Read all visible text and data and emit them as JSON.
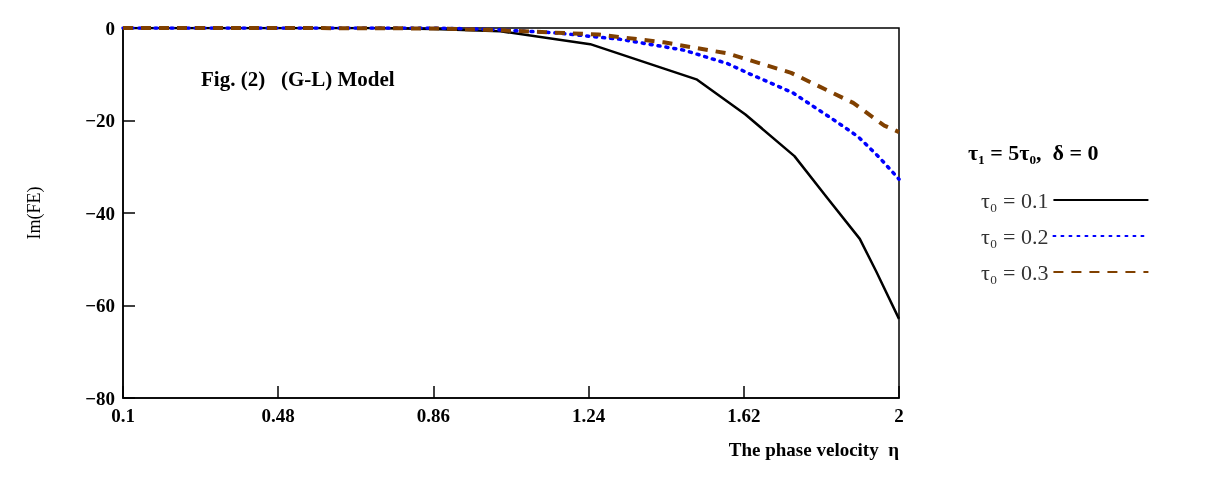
{
  "chart_data": {
    "type": "line",
    "title": "Fig. (2)   (G-L) Model",
    "xlabel": "The phase velocity  η",
    "ylabel": "Im(FE)",
    "legend_title": "τ₁ = 5τ₀,  δ = 0",
    "legend": "right",
    "marker": "none",
    "grid": false,
    "xlim": [
      0.1,
      2
    ],
    "xticks": [
      0.1,
      0.48,
      0.86,
      1.24,
      1.62,
      2
    ],
    "ylim": [
      -80,
      0
    ],
    "yticks": [
      {
        "value": -80,
        "label": "−80"
      },
      {
        "value": -60,
        "label": "−60"
      },
      {
        "value": -40,
        "label": "−40"
      },
      {
        "value": -20,
        "label": "−20"
      },
      {
        "value": 0,
        "label": "0"
      }
    ],
    "series": [
      {
        "name": "τ₀ = 0.1",
        "color": "#000000",
        "line_style": "solid",
        "x": [
          0.1,
          0.4,
          0.7,
          0.86,
          1.024,
          1.244,
          1.504,
          1.624,
          1.744,
          1.824,
          1.904,
          1.944,
          2.0
        ],
        "values": [
          0,
          0,
          0,
          -0.2,
          -0.7,
          -3.5,
          -11.1,
          -18.7,
          -27.7,
          -36.7,
          -45.6,
          -52.6,
          -62.9
        ]
      },
      {
        "name": "τ₀ = 0.2",
        "color": "#0000ff",
        "line_style": "dotted",
        "x": [
          0.1,
          0.5,
          0.86,
          1.0,
          1.153,
          1.314,
          1.474,
          1.58,
          1.634,
          1.74,
          1.846,
          1.9,
          1.952,
          2.0
        ],
        "values": [
          0,
          0,
          0,
          -0.3,
          -1.0,
          -2.4,
          -4.8,
          -7.7,
          -9.9,
          -14,
          -20.2,
          -23.5,
          -28,
          -32.7
        ]
      },
      {
        "name": "τ₀ = 0.3",
        "color": "#804000",
        "line_style": "dashed",
        "x": [
          0.1,
          0.5,
          0.86,
          1.024,
          1.264,
          1.424,
          1.58,
          1.736,
          1.888,
          1.964,
          2.0
        ],
        "values": [
          0,
          0,
          -0.1,
          -0.5,
          -1.4,
          -3.1,
          -5.5,
          -9.7,
          -16.2,
          -21.1,
          -22.5
        ]
      }
    ]
  }
}
